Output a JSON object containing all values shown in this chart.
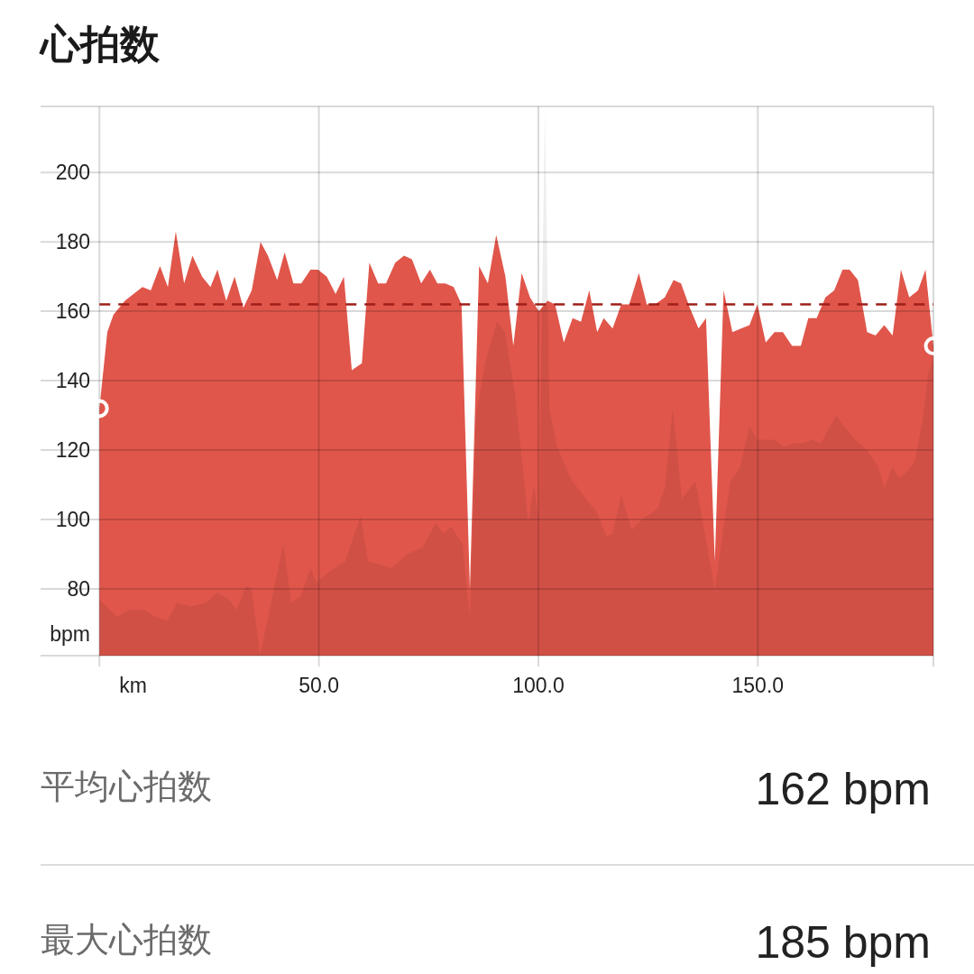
{
  "chart_data": {
    "type": "area",
    "title": "心拍数",
    "xlabel": "km",
    "ylabel": "bpm",
    "xlim": [
      -13.4,
      190
    ],
    "ylim": [
      60.8,
      219
    ],
    "xticks": [
      {
        "value": 0,
        "label": null
      },
      {
        "value": 50,
        "label": "50.0"
      },
      {
        "value": 100,
        "label": "100.0"
      },
      {
        "value": 150,
        "label": "150.0"
      }
    ],
    "yticks": [
      80,
      100,
      120,
      140,
      160,
      180,
      200
    ],
    "grid": true,
    "series": [
      {
        "color": "#e0564b",
        "x": [
          0,
          1.8,
          3.2,
          5.8,
          9.8,
          11.7,
          13.8,
          15.6,
          17.4,
          19.3,
          21.2,
          23.4,
          25.3,
          26.9,
          28.9,
          30.8,
          32.8,
          34.7,
          36.7,
          38.4,
          40.5,
          42.2,
          44.2,
          46.0,
          48.1,
          49.8,
          51.8,
          53.8,
          55.7,
          57.5,
          59.8,
          61.5,
          63.5,
          65.3,
          67.4,
          69.4,
          71.2,
          73.3,
          75.3,
          77.0,
          78.8,
          80.7,
          82.5,
          84.4,
          86.5,
          88.5,
          90.4,
          92.5,
          94.3,
          96.2,
          98.1,
          100.1,
          102.1,
          103.8,
          105.8,
          107.8,
          109.7,
          111.6,
          113.4,
          114.9,
          116.9,
          118.9,
          120.7,
          122.9,
          124.7,
          126.6,
          128.8,
          130.8,
          132.5,
          134.5,
          136.5,
          138.2,
          140.2,
          142.2,
          144.2,
          146.2,
          148.1,
          149.9,
          151.8,
          153.8,
          155.7,
          157.8,
          159.8,
          161.5,
          163.4,
          165.4,
          167.4,
          169.3,
          170.9,
          172.8,
          174.9,
          176.8,
          178.8,
          180.7,
          182.6,
          184.5,
          186.5,
          188.2,
          190
        ],
        "values": [
          132,
          154,
          159,
          163,
          167,
          166,
          173,
          167,
          183,
          168,
          176,
          170,
          167,
          172,
          163,
          170,
          161,
          166,
          180,
          176,
          169,
          177,
          168,
          168,
          172,
          172,
          170,
          165,
          170,
          143,
          145,
          174,
          168,
          168,
          174,
          176,
          175,
          168,
          172,
          168,
          168,
          167,
          162,
          80,
          173,
          168,
          182,
          170,
          150,
          171,
          164,
          160,
          163,
          162,
          151,
          158,
          157,
          166,
          154,
          158,
          155,
          162,
          162,
          171,
          162,
          162,
          164,
          169,
          168,
          161,
          155,
          158,
          88,
          166,
          154,
          155,
          156,
          162,
          151,
          154,
          154,
          150,
          150,
          158,
          158,
          164,
          166,
          172,
          172,
          169,
          154,
          153,
          156,
          153,
          172,
          164,
          166,
          172,
          150
        ]
      },
      {
        "color": "#eeeeee",
        "x": [
          0,
          4.0,
          6.7,
          10.2,
          12.8,
          15.5,
          17.7,
          20.8,
          24.2,
          26.9,
          29.5,
          31.2,
          33.5,
          34.7,
          36.6,
          41.9,
          43.7,
          45.9,
          48.1,
          49.4,
          52.5,
          56.0,
          59.5,
          61.2,
          63.9,
          66.6,
          70.1,
          73.6,
          76.6,
          78.4,
          80.1,
          82.7,
          84.4,
          85.8,
          88.0,
          90.6,
          92.4,
          94.6,
          96.4,
          97.7,
          99.0,
          100.1,
          101.5,
          102.5,
          104.3,
          107.3,
          110.8,
          113.4,
          115.6,
          116.9,
          118.9,
          121.3,
          123.5,
          127.1,
          128.8,
          130.6,
          132.7,
          135.8,
          140.2,
          143.7,
          145.9,
          148.1,
          149.9,
          153.8,
          155.9,
          158.2,
          160.4,
          162.5,
          164.4,
          166.0,
          167.9,
          169.6,
          172.2,
          174.9,
          177.5,
          178.8,
          180.6,
          182.3,
          184.1,
          185.8,
          187.6,
          188.9,
          190
        ],
        "values": [
          77,
          72,
          74,
          74,
          72,
          71,
          76,
          75,
          76,
          79,
          77,
          74,
          81,
          80,
          61,
          93,
          76,
          78,
          86,
          82,
          85,
          88,
          101,
          88,
          87,
          86,
          90,
          92,
          99,
          96,
          98,
          93,
          72,
          130,
          146,
          157,
          154,
          137,
          116,
          99,
          110,
          100,
          218,
          132,
          121,
          112,
          106,
          102,
          95,
          96,
          107,
          97,
          100,
          103,
          109,
          132,
          106,
          111,
          80,
          111,
          115,
          127,
          123,
          123,
          121,
          122,
          122,
          123,
          122,
          126,
          130,
          127,
          123,
          120,
          115,
          109,
          115,
          112,
          114,
          117,
          129,
          143,
          146
        ]
      },
      {
        "type": "scatter",
        "marker": "circle",
        "color": "#ffffff",
        "x": [
          0,
          190
        ],
        "values": [
          132,
          150
        ]
      }
    ],
    "ref_lines": [
      {
        "axis": "y",
        "value": 162,
        "color": "#9e1f1a",
        "line_style": "dashed"
      }
    ],
    "annotations": [
      "平均心拍数",
      "162 bpm",
      "最大心拍数",
      "185 bpm"
    ]
  }
}
